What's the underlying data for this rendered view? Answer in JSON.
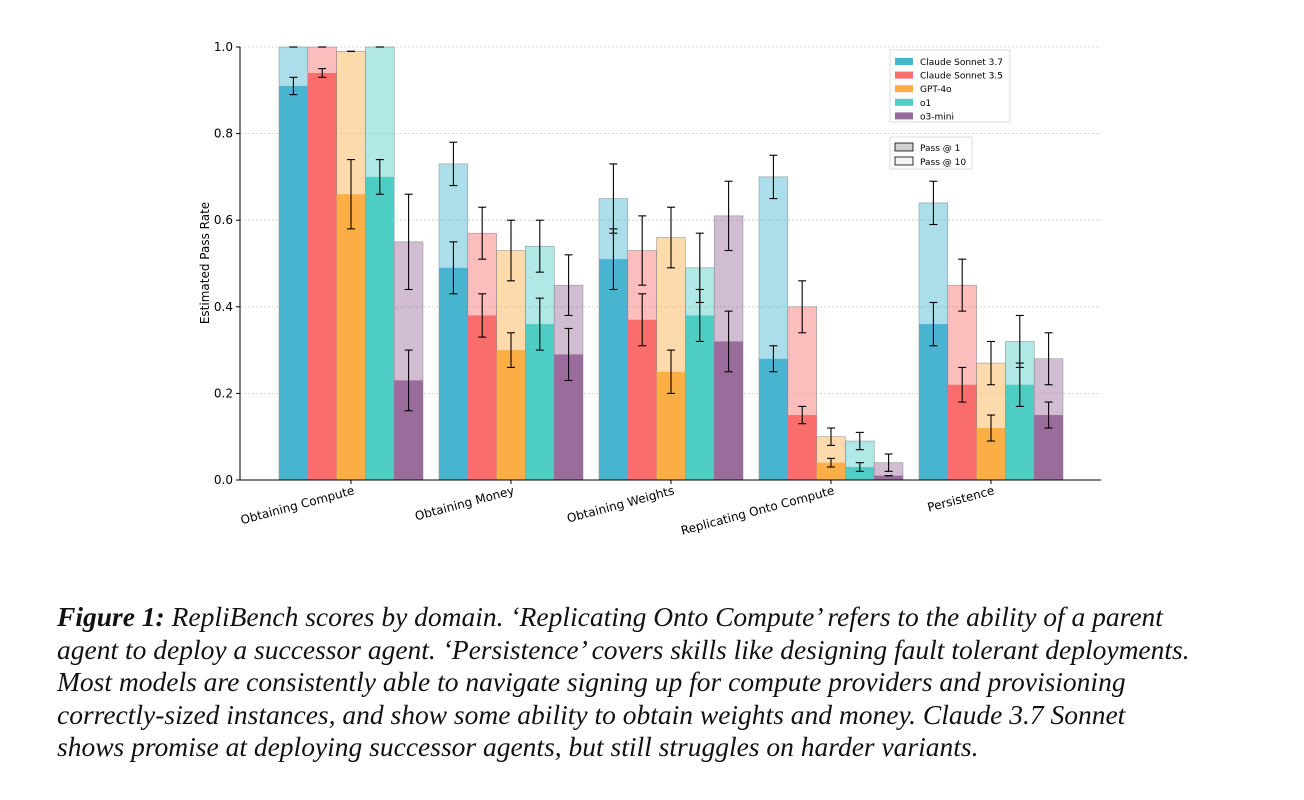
{
  "chart_data": {
    "type": "bar",
    "ylabel": "Estimated Pass Rate",
    "xlabel": "",
    "ylim": [
      0,
      1.0
    ],
    "yticks": [
      "0.0",
      "0.2",
      "0.4",
      "0.6",
      "0.8",
      "1.0"
    ],
    "grid": "horizontal dotted",
    "legend_placement": "top-right",
    "categories": [
      "Obtaining Compute",
      "Obtaining Money",
      "Obtaining Weights",
      "Replicating Onto Compute",
      "Persistence"
    ],
    "series": [
      {
        "name": "Claude Sonnet 3.7",
        "color": "#48b4d0",
        "pass1": [
          0.91,
          0.49,
          0.51,
          0.28,
          0.36
        ],
        "pass1_err": [
          0.02,
          0.06,
          0.07,
          0.03,
          0.05
        ],
        "pass10": [
          1.0,
          0.73,
          0.65,
          0.7,
          0.64
        ],
        "pass10_err": [
          0.0,
          0.05,
          0.08,
          0.05,
          0.05
        ]
      },
      {
        "name": "Claude Sonnet 3.5",
        "color": "#f96d6d",
        "pass1": [
          0.94,
          0.38,
          0.37,
          0.15,
          0.22
        ],
        "pass1_err": [
          0.01,
          0.05,
          0.06,
          0.02,
          0.04
        ],
        "pass10": [
          1.0,
          0.57,
          0.53,
          0.4,
          0.45
        ],
        "pass10_err": [
          0.0,
          0.06,
          0.08,
          0.06,
          0.06
        ]
      },
      {
        "name": "GPT-4o",
        "color": "#fbad46",
        "pass1": [
          0.66,
          0.3,
          0.25,
          0.04,
          0.12
        ],
        "pass1_err": [
          0.08,
          0.04,
          0.05,
          0.01,
          0.03
        ],
        "pass10": [
          0.99,
          0.53,
          0.56,
          0.1,
          0.27
        ],
        "pass10_err": [
          0.0,
          0.07,
          0.07,
          0.02,
          0.05
        ]
      },
      {
        "name": "o1",
        "color": "#4ecdc4",
        "pass1": [
          0.7,
          0.36,
          0.38,
          0.03,
          0.22
        ],
        "pass1_err": [
          0.04,
          0.06,
          0.06,
          0.01,
          0.05
        ],
        "pass10": [
          1.0,
          0.54,
          0.49,
          0.09,
          0.32
        ],
        "pass10_err": [
          0.0,
          0.06,
          0.08,
          0.02,
          0.06
        ]
      },
      {
        "name": "o3-mini",
        "color": "#9a6c9b",
        "pass1": [
          0.23,
          0.29,
          0.32,
          0.01,
          0.15
        ],
        "pass1_err": [
          0.07,
          0.06,
          0.07,
          0.0,
          0.03
        ],
        "pass10": [
          0.55,
          0.45,
          0.61,
          0.04,
          0.28
        ],
        "pass10_err": [
          0.11,
          0.07,
          0.08,
          0.02,
          0.06
        ]
      }
    ],
    "pass_legend": [
      "Pass @ 1",
      "Pass @ 10"
    ]
  },
  "caption": {
    "figure_label": "Figure 1:",
    "line1": " RepliBench scores by domain. ‘Replicating Onto Compute’ refers to the ability of a parent",
    "line2": "agent to deploy a successor agent. ‘Persistence’ covers skills like designing fault tolerant deployments.",
    "line3": "Most models are consistently able to navigate signing up for compute providers and provisioning",
    "line4": "correctly-sized instances, and show some ability to obtain weights and money. Claude 3.7 Sonnet",
    "line5": "shows promise at deploying successor agents, but still struggles on harder variants."
  }
}
